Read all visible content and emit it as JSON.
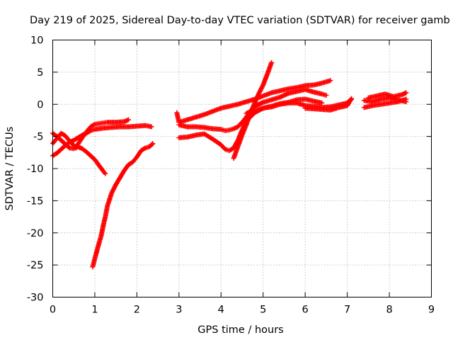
{
  "chart_data": {
    "type": "scatter",
    "title": "Day 219 of 2025, Sidereal Day-to-day VTEC variation (SDTVAR) for receiver gamb",
    "xlabel": "GPS time / hours",
    "ylabel": "SDTVAR / TECUs",
    "xlim": [
      0,
      9
    ],
    "ylim": [
      -30,
      10
    ],
    "xticks": [
      0,
      1,
      2,
      3,
      4,
      5,
      6,
      7,
      8,
      9
    ],
    "yticks": [
      -30,
      -25,
      -20,
      -15,
      -10,
      -5,
      0,
      5,
      10
    ],
    "grid": true,
    "marker": "+",
    "marker_color": "#ff0000",
    "series": [
      {
        "x": [
          0.0,
          0.1,
          0.2,
          0.3,
          0.4,
          0.5,
          0.6,
          0.7,
          0.8,
          0.9,
          1.0,
          1.1,
          1.2,
          1.3,
          1.5,
          1.7,
          1.8
        ],
        "y": [
          -4.5,
          -5.0,
          -5.6,
          -6.2,
          -6.8,
          -6.9,
          -6.2,
          -5.2,
          -4.3,
          -3.5,
          -3.1,
          -3.0,
          -2.9,
          -2.8,
          -2.8,
          -2.7,
          -2.4
        ]
      },
      {
        "x": [
          0.0,
          0.1,
          0.2,
          0.3,
          0.4,
          0.5,
          0.55,
          0.6,
          0.7,
          0.8,
          0.9,
          1.0,
          1.1,
          1.2,
          1.25
        ],
        "y": [
          -6.1,
          -5.3,
          -4.5,
          -4.9,
          -5.7,
          -6.4,
          -6.8,
          -6.6,
          -6.9,
          -7.4,
          -8.0,
          -8.6,
          -9.5,
          -10.4,
          -10.8
        ]
      },
      {
        "x": [
          0.0,
          0.1,
          0.2,
          0.3,
          0.4,
          0.5,
          0.6,
          0.7,
          0.8,
          0.9,
          1.0,
          1.2,
          1.4,
          1.6,
          1.8,
          2.0,
          2.2,
          2.35
        ],
        "y": [
          -8.0,
          -7.6,
          -7.0,
          -6.4,
          -5.9,
          -5.6,
          -5.2,
          -4.8,
          -4.5,
          -4.1,
          -3.9,
          -3.7,
          -3.6,
          -3.5,
          -3.5,
          -3.4,
          -3.3,
          -3.5
        ]
      },
      {
        "x": [
          0.95,
          1.0,
          1.05,
          1.1,
          1.15,
          1.2,
          1.25,
          1.3,
          1.4,
          1.5,
          1.6,
          1.7,
          1.8,
          1.9,
          2.0,
          2.1,
          2.2,
          2.3,
          2.38
        ],
        "y": [
          -25.3,
          -24.0,
          -22.8,
          -21.6,
          -20.5,
          -18.9,
          -17.5,
          -15.8,
          -13.8,
          -12.5,
          -11.4,
          -10.3,
          -9.4,
          -9.0,
          -8.2,
          -7.2,
          -6.8,
          -6.6,
          -6.1
        ]
      },
      {
        "x": [
          2.95,
          3.0,
          3.2,
          3.4,
          3.6,
          3.8,
          4.0,
          4.2,
          4.4,
          4.6,
          4.8,
          5.0,
          5.2,
          5.4,
          5.6,
          5.8,
          6.0,
          6.2,
          6.4,
          6.6
        ],
        "y": [
          -1.3,
          -2.8,
          -2.4,
          -2.0,
          -1.6,
          -1.1,
          -0.6,
          -0.3,
          0.0,
          0.4,
          0.8,
          1.3,
          1.8,
          2.1,
          2.4,
          2.6,
          2.9,
          3.0,
          3.3,
          3.7
        ]
      },
      {
        "x": [
          3.0,
          3.2,
          3.4,
          3.6,
          3.8,
          4.0,
          4.1,
          4.2,
          4.3,
          4.4,
          4.5,
          4.6,
          4.7,
          4.8,
          5.0,
          5.2,
          5.4,
          5.6,
          5.8,
          6.0,
          6.2,
          6.4,
          6.5
        ],
        "y": [
          -3.2,
          -3.5,
          -3.5,
          -3.6,
          -3.8,
          -3.9,
          -4.1,
          -4.0,
          -3.8,
          -3.5,
          -2.8,
          -2.0,
          -1.0,
          -0.3,
          0.3,
          0.7,
          1.1,
          1.7,
          2.0,
          2.3,
          1.9,
          1.6,
          1.4
        ]
      },
      {
        "x": [
          3.0,
          3.2,
          3.4,
          3.6,
          3.8,
          4.0,
          4.1,
          4.2,
          4.3,
          4.4,
          4.5,
          4.6,
          4.8,
          5.0,
          5.2,
          5.4,
          5.6,
          5.8,
          6.0,
          6.2,
          6.4
        ],
        "y": [
          -5.2,
          -5.1,
          -4.8,
          -4.6,
          -5.4,
          -6.3,
          -7.0,
          -7.2,
          -6.8,
          -5.6,
          -4.0,
          -2.6,
          -1.3,
          -0.6,
          -0.3,
          0.1,
          0.3,
          0.7,
          0.8,
          0.5,
          0.2
        ]
      },
      {
        "x": [
          4.3,
          4.4,
          4.5,
          4.6,
          4.7,
          4.8,
          4.9,
          5.0,
          5.1,
          5.2
        ],
        "y": [
          -8.4,
          -6.6,
          -4.8,
          -3.2,
          -1.4,
          0.2,
          1.7,
          3.0,
          4.7,
          6.5
        ]
      },
      {
        "x": [
          4.6,
          4.8,
          5.0,
          5.2,
          5.4,
          5.6,
          5.8,
          6.0,
          6.2,
          6.4,
          6.6,
          6.8,
          7.0,
          7.1
        ],
        "y": [
          -1.4,
          -1.0,
          -0.6,
          -0.4,
          0.0,
          0.2,
          0.2,
          -0.2,
          -0.3,
          -0.5,
          -0.4,
          -0.1,
          0.2,
          0.8
        ]
      },
      {
        "x": [
          6.0,
          6.2,
          6.4,
          6.6,
          6.8,
          7.0,
          7.1
        ],
        "y": [
          -0.6,
          -0.7,
          -0.8,
          -0.9,
          -0.5,
          -0.2,
          0.9
        ]
      },
      {
        "x": [
          7.4,
          7.6,
          7.8,
          8.0,
          8.2,
          8.4
        ],
        "y": [
          0.6,
          0.4,
          0.8,
          1.0,
          0.7,
          0.4
        ]
      },
      {
        "x": [
          7.4,
          7.6,
          7.8,
          8.0,
          8.2,
          8.4
        ],
        "y": [
          -0.5,
          -0.2,
          0.0,
          0.2,
          0.4,
          0.8
        ]
      },
      {
        "x": [
          7.5,
          7.7,
          7.9,
          8.1,
          8.3,
          8.4
        ],
        "y": [
          1.0,
          1.3,
          1.6,
          1.2,
          1.5,
          1.8
        ]
      }
    ]
  }
}
